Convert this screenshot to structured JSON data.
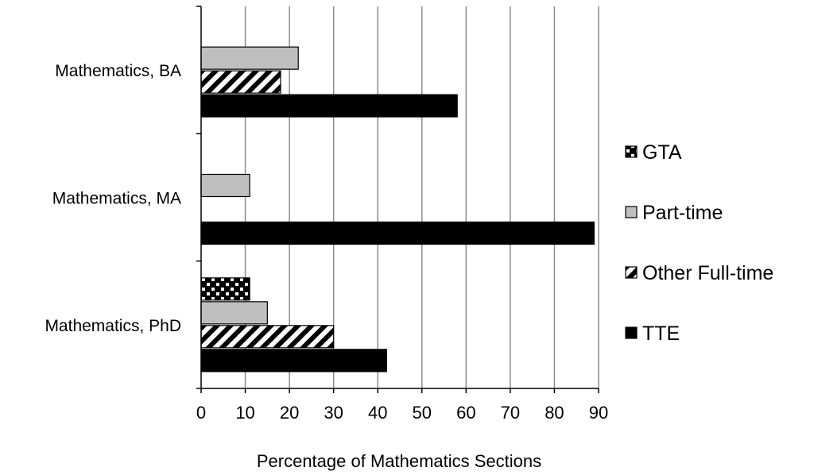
{
  "chart_data": {
    "type": "bar",
    "orientation": "horizontal",
    "title": "",
    "xlabel": "Percentage of Mathematics Sections",
    "ylabel": "",
    "xlim": [
      0,
      90
    ],
    "x_ticks": [
      "0",
      "10",
      "20",
      "30",
      "40",
      "50",
      "60",
      "70",
      "80",
      "90"
    ],
    "grid": "vertical",
    "legend_position": "right",
    "categories": [
      "Mathematics, BA",
      "Mathematics, MA",
      "Mathematics, PhD"
    ],
    "series": [
      {
        "name": "GTA",
        "values": [
          0,
          0,
          11
        ],
        "fill": "dotted",
        "color": "#000000"
      },
      {
        "name": "Part-time",
        "values": [
          22,
          11,
          15
        ],
        "fill": "solid",
        "color": "#bfbfbf"
      },
      {
        "name": "Other Full-time",
        "values": [
          18,
          0,
          30
        ],
        "fill": "diagonal-hatch",
        "color": "#000000"
      },
      {
        "name": "TTE",
        "values": [
          58,
          89,
          42
        ],
        "fill": "solid",
        "color": "#000000"
      }
    ],
    "legend_order": [
      "GTA",
      "Part-time",
      "Other Full-time",
      "TTE"
    ]
  }
}
